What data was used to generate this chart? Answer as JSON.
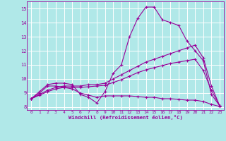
{
  "background_color": "#b0e8e8",
  "line_color": "#990099",
  "grid_color": "#ffffff",
  "xlabel": "Windchill (Refroidissement éolien,°C)",
  "ylim": [
    7.8,
    15.5
  ],
  "xlim": [
    -0.5,
    23.5
  ],
  "yticks": [
    8,
    9,
    10,
    11,
    12,
    13,
    14,
    15
  ],
  "xticks": [
    0,
    1,
    2,
    3,
    4,
    5,
    6,
    7,
    8,
    9,
    10,
    11,
    12,
    13,
    14,
    15,
    16,
    17,
    18,
    19,
    20,
    21,
    22,
    23
  ],
  "series": [
    {
      "x": [
        0,
        1,
        2,
        3,
        4,
        5,
        6,
        7,
        8,
        9,
        10,
        11,
        12,
        13,
        14,
        15,
        16,
        17,
        18,
        19,
        20,
        21,
        22,
        23
      ],
      "y": [
        8.6,
        9.1,
        9.6,
        9.7,
        9.7,
        9.6,
        8.9,
        8.7,
        8.3,
        9.1,
        10.4,
        11.0,
        13.0,
        14.3,
        15.1,
        15.1,
        14.2,
        14.0,
        13.8,
        12.7,
        12.0,
        11.3,
        8.9,
        8.1
      ]
    },
    {
      "x": [
        0,
        1,
        2,
        3,
        4,
        5,
        6,
        7,
        8,
        9,
        10,
        11,
        12,
        13,
        14,
        15,
        16,
        17,
        18,
        19,
        20,
        21,
        22,
        23
      ],
      "y": [
        8.6,
        9.0,
        9.5,
        9.5,
        9.4,
        9.3,
        9.0,
        8.85,
        8.7,
        8.8,
        8.8,
        8.8,
        8.8,
        8.75,
        8.7,
        8.7,
        8.6,
        8.6,
        8.55,
        8.5,
        8.5,
        8.4,
        8.2,
        8.05
      ]
    },
    {
      "x": [
        0,
        1,
        2,
        3,
        4,
        5,
        6,
        7,
        8,
        9,
        10,
        11,
        12,
        13,
        14,
        15,
        16,
        17,
        18,
        19,
        20,
        21,
        22,
        23
      ],
      "y": [
        8.6,
        8.9,
        9.2,
        9.4,
        9.5,
        9.5,
        9.5,
        9.6,
        9.6,
        9.7,
        10.0,
        10.3,
        10.6,
        10.9,
        11.2,
        11.4,
        11.6,
        11.8,
        12.0,
        12.2,
        12.4,
        11.5,
        9.5,
        8.1
      ]
    },
    {
      "x": [
        0,
        1,
        2,
        3,
        4,
        5,
        6,
        7,
        8,
        9,
        10,
        11,
        12,
        13,
        14,
        15,
        16,
        17,
        18,
        19,
        20,
        21,
        22,
        23
      ],
      "y": [
        8.6,
        8.85,
        9.1,
        9.3,
        9.4,
        9.4,
        9.4,
        9.45,
        9.5,
        9.55,
        9.75,
        9.95,
        10.2,
        10.45,
        10.65,
        10.8,
        10.95,
        11.1,
        11.2,
        11.3,
        11.4,
        10.6,
        9.2,
        8.1
      ]
    }
  ]
}
